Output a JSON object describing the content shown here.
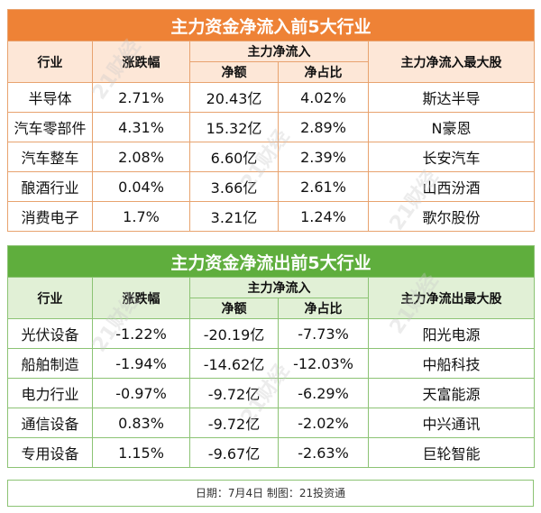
{
  "inflow": {
    "title": "主力资金净流入前5大行业",
    "headers": {
      "industry": "行业",
      "change": "涨跌幅",
      "net_group": "主力净流入",
      "net_amount": "净额",
      "net_ratio": "净占比",
      "top_stock": "主力净流入最大股"
    },
    "rows": [
      {
        "industry": "半导体",
        "change": "2.71%",
        "amount": "20.43亿",
        "ratio": "4.02%",
        "stock": "斯达半导"
      },
      {
        "industry": "汽车零部件",
        "change": "4.31%",
        "amount": "15.32亿",
        "ratio": "2.89%",
        "stock": "N豪恩"
      },
      {
        "industry": "汽车整车",
        "change": "2.08%",
        "amount": "6.60亿",
        "ratio": "2.39%",
        "stock": "长安汽车"
      },
      {
        "industry": "酿酒行业",
        "change": "0.04%",
        "amount": "3.66亿",
        "ratio": "2.61%",
        "stock": "山西汾酒"
      },
      {
        "industry": "消费电子",
        "change": "1.7%",
        "amount": "3.21亿",
        "ratio": "1.24%",
        "stock": "歌尔股份"
      }
    ]
  },
  "outflow": {
    "title": "主力资金净流出前5大行业",
    "headers": {
      "industry": "行业",
      "change": "涨跌幅",
      "net_group": "主力净流入",
      "net_amount": "净额",
      "net_ratio": "净占比",
      "top_stock": "主力净流出最大股"
    },
    "rows": [
      {
        "industry": "光伏设备",
        "change": "-1.22%",
        "amount": "-20.19亿",
        "ratio": "-7.73%",
        "stock": "阳光电源"
      },
      {
        "industry": "船舶制造",
        "change": "-1.94%",
        "amount": "-14.62亿",
        "ratio": "-12.03%",
        "stock": "中船科技"
      },
      {
        "industry": "电力行业",
        "change": "-0.97%",
        "amount": "-9.72亿",
        "ratio": "-6.29%",
        "stock": "天富能源"
      },
      {
        "industry": "通信设备",
        "change": "0.83%",
        "amount": "-9.72亿",
        "ratio": "-2.02%",
        "stock": "中兴通讯"
      },
      {
        "industry": "专用设备",
        "change": "1.15%",
        "amount": "-9.67亿",
        "ratio": "-2.63%",
        "stock": "巨轮智能"
      }
    ]
  },
  "footer": "日期：7月4日 制图：21投资通",
  "watermark": "21财经",
  "colors": {
    "inflow_header": "#ee8236",
    "inflow_subheader": "#fde7d7",
    "outflow_header": "#5fae3d",
    "outflow_subheader": "#e1f0d6"
  }
}
